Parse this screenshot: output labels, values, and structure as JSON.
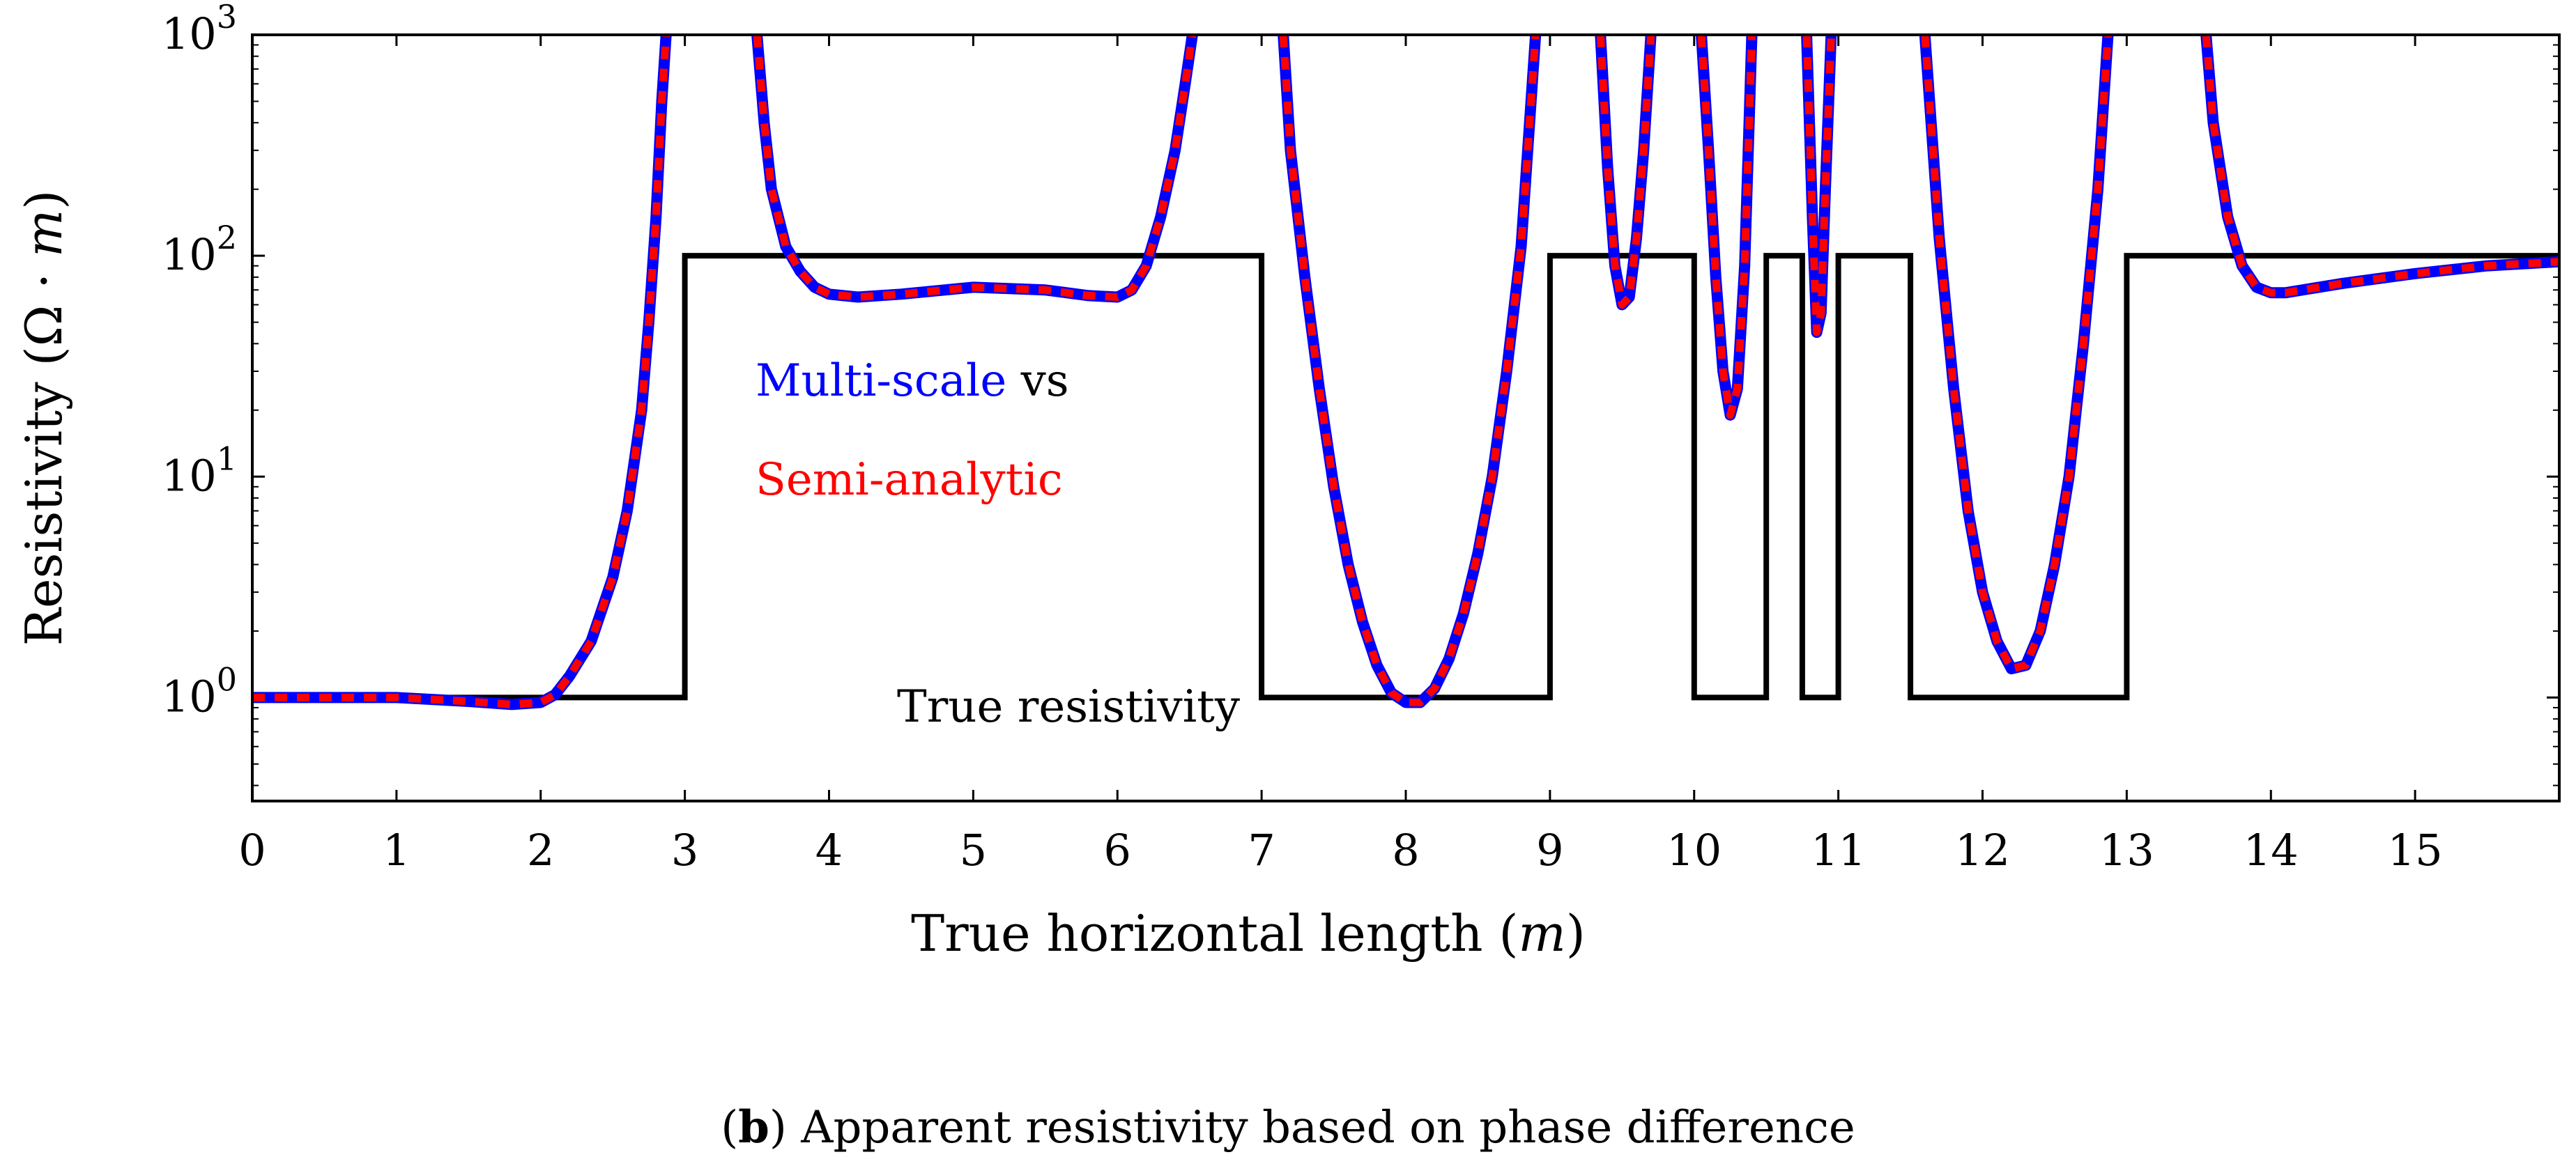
{
  "chart_data": {
    "type": "line",
    "title": "",
    "xlabel": "True horizontal length (m)",
    "ylabel": "Resistivity (Ω · m)",
    "xlim": [
      0,
      16
    ],
    "ylim": [
      0.34,
      1000
    ],
    "yscale": "log",
    "x_ticks": [
      0,
      1,
      2,
      3,
      4,
      5,
      6,
      7,
      8,
      9,
      10,
      11,
      12,
      13,
      14,
      15
    ],
    "x_tick_labels": [
      "0",
      "1",
      "2",
      "3",
      "4",
      "5",
      "6",
      "7",
      "8",
      "9",
      "10",
      "11",
      "12",
      "13",
      "14",
      "15"
    ],
    "y_ticks": [
      1,
      10,
      100,
      1000
    ],
    "y_tick_labels": [
      {
        "base": "10",
        "exp": "0"
      },
      {
        "base": "10",
        "exp": "1"
      },
      {
        "base": "10",
        "exp": "2"
      },
      {
        "base": "10",
        "exp": "3"
      }
    ],
    "series": [
      {
        "name": "True resistivity",
        "color": "#000000",
        "style": "solid",
        "x": [
          0,
          3,
          3,
          7,
          7,
          9,
          9,
          10,
          10,
          10.5,
          10.5,
          10.75,
          10.75,
          11,
          11,
          11.5,
          11.5,
          13,
          13,
          16
        ],
        "y": [
          1,
          1,
          100,
          100,
          1,
          1,
          100,
          100,
          1,
          1,
          100,
          100,
          1,
          1,
          100,
          100,
          1,
          1,
          100,
          100
        ]
      },
      {
        "name": "Multi-scale",
        "color": "#0000ff",
        "style": "solid",
        "segments": [
          {
            "x": [
              0,
              0.5,
              1.0,
              1.5,
              1.8,
              2.0,
              2.1,
              2.2,
              2.35,
              2.5,
              2.6,
              2.7,
              2.75,
              2.8,
              2.84,
              2.87
            ],
            "y": [
              1.0,
              1.0,
              1.0,
              0.96,
              0.93,
              0.95,
              1.03,
              1.25,
              1.8,
              3.5,
              7,
              20,
              50,
              150,
              500,
              1000
            ]
          },
          {
            "x": [
              3.5,
              3.55,
              3.6,
              3.7,
              3.8,
              3.9,
              4.0,
              4.2,
              4.5,
              5.0,
              5.5,
              5.8,
              6.0,
              6.1,
              6.2,
              6.3,
              6.4,
              6.47,
              6.52
            ],
            "y": [
              1000,
              400,
              200,
              110,
              85,
              72,
              67,
              65,
              67,
              72,
              70,
              66,
              65,
              70,
              90,
              150,
              300,
              600,
              1000
            ]
          },
          {
            "x": [
              7.15,
              7.2,
              7.3,
              7.4,
              7.5,
              7.6,
              7.7,
              7.8,
              7.9,
              8.0,
              8.1,
              8.2,
              8.3,
              8.4,
              8.5,
              8.6,
              8.7,
              8.8,
              8.9
            ],
            "y": [
              1000,
              300,
              80,
              25,
              9,
              4,
              2.2,
              1.4,
              1.05,
              0.95,
              0.95,
              1.1,
              1.5,
              2.4,
              4.5,
              10,
              30,
              110,
              1000
            ]
          },
          {
            "x": [
              9.35,
              9.4,
              9.45,
              9.5,
              9.55,
              9.6,
              9.65,
              9.7
            ],
            "y": [
              1000,
              250,
              90,
              60,
              65,
              120,
              300,
              1000
            ]
          },
          {
            "x": [
              10.05,
              10.1,
              10.15,
              10.2,
              10.25,
              10.3,
              10.35,
              10.4
            ],
            "y": [
              1000,
              300,
              80,
              30,
              19,
              25,
              90,
              1000
            ]
          },
          {
            "x": [
              10.78,
              10.82,
              10.85,
              10.88,
              10.91,
              10.95
            ],
            "y": [
              1000,
              150,
              45,
              55,
              200,
              1000
            ]
          },
          {
            "x": [
              11.6,
              11.7,
              11.8,
              11.9,
              12.0,
              12.1,
              12.2,
              12.3,
              12.4,
              12.5,
              12.6,
              12.7,
              12.8,
              12.87
            ],
            "y": [
              1000,
              120,
              25,
              7,
              3,
              1.8,
              1.35,
              1.4,
              2,
              4,
              10,
              40,
              200,
              1000
            ]
          },
          {
            "x": [
              13.55,
              13.6,
              13.7,
              13.8,
              13.9,
              14.0,
              14.1,
              14.5,
              15.0,
              15.5,
              16.0
            ],
            "y": [
              1000,
              400,
              150,
              90,
              72,
              68,
              68,
              75,
              83,
              90,
              94
            ]
          }
        ]
      },
      {
        "name": "Semi-analytic",
        "color": "#ff0000",
        "style": "dashed",
        "same_as": "Multi-scale"
      }
    ],
    "annotations": [
      {
        "text": "True resistivity",
        "x": 4.45,
        "y": 1.07,
        "color": "#000000"
      },
      {
        "parts": [
          {
            "text": "Multi-scale",
            "color": "#0000ff"
          },
          {
            "text": " vs",
            "color": "#000000"
          }
        ],
        "x": 3.49,
        "y": 28
      },
      {
        "text": "Semi-analytic",
        "x": 3.49,
        "y": 10.5,
        "color": "#ff0000"
      }
    ]
  },
  "caption": {
    "label": "b",
    "text": ") Apparent resistivity based on phase difference",
    "open_paren": "("
  },
  "labels": {
    "x_axis_prefix": "True horizontal length (",
    "x_axis_unit": "m",
    "x_axis_suffix": ")",
    "y_axis_prefix": "Resistivity (Ω · ",
    "y_axis_unit": "m",
    "y_axis_suffix": ")"
  }
}
